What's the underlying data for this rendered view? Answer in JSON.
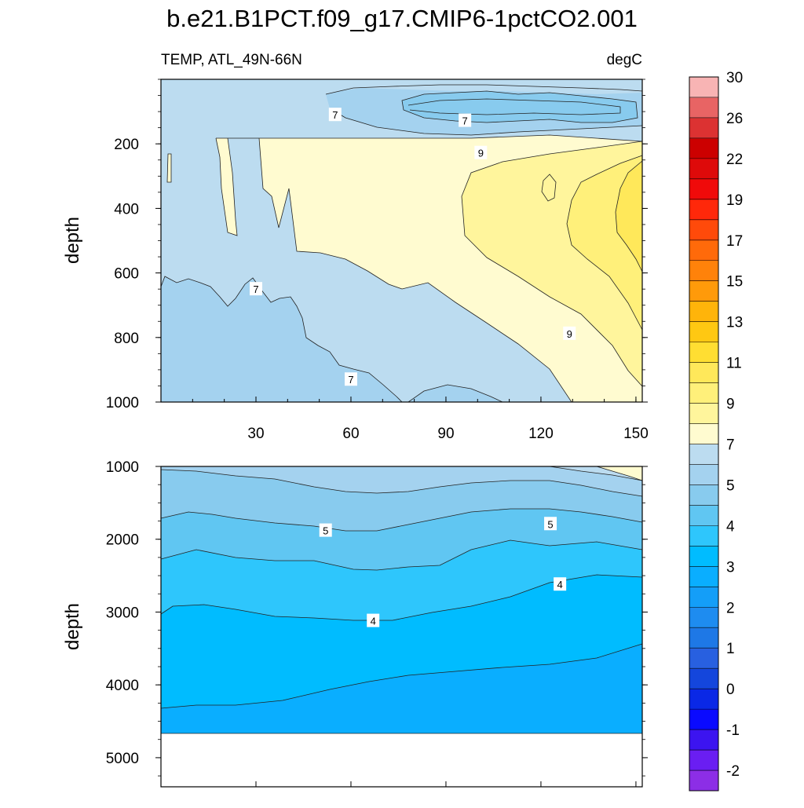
{
  "title": "b.e21.B1PCT.f09_g17.CMIP6-1pctCO2.001",
  "upper_panel": {
    "left_string": "TEMP, ATL_49N-66N",
    "right_string": "degC"
  },
  "colorbar": {
    "colors": [
      "#8c2ee6",
      "#6a1ef2",
      "#3c14f0",
      "#0a0aff",
      "#0a28e6",
      "#1446dc",
      "#2860e0",
      "#1e78e6",
      "#1e8cf0",
      "#149ef8",
      "#0aaeff",
      "#00bcff",
      "#2ec6fc",
      "#60c6f2",
      "#88cbee",
      "#a4d2ef",
      "#bcdcf0",
      "#fffbd0",
      "#fff59c",
      "#fff07a",
      "#ffe85a",
      "#ffde32",
      "#ffc812",
      "#ffb40a",
      "#ff9a0a",
      "#ff820a",
      "#ff6a0a",
      "#ff4a0a",
      "#ff280a",
      "#f00a0a",
      "#de0a0a",
      "#cc0000",
      "#dc3232",
      "#e86464",
      "#f8b4b4"
    ],
    "labels": [
      "-2",
      "-1",
      "0",
      "1",
      "2",
      "3",
      "4",
      "5",
      "7",
      "9",
      "11",
      "13",
      "15",
      "17",
      "19",
      "22",
      "26",
      "30"
    ]
  },
  "chart_data": [
    {
      "type": "contour",
      "panel": "upper",
      "title": "TEMP, ATL_49N-66N",
      "units": "degC",
      "xlabel": "",
      "ylabel": "depth",
      "xlim": [
        0,
        152
      ],
      "ylim": [
        1000,
        0
      ],
      "x_ticks": [
        "30",
        "60",
        "90",
        "120",
        "150"
      ],
      "y_ticks": [
        "200",
        "400",
        "600",
        "800",
        "1000"
      ],
      "contour_labels": [
        {
          "text": "7",
          "x": 55,
          "y": 110
        },
        {
          "text": "7",
          "x": 96,
          "y": 128
        },
        {
          "text": "9",
          "x": 101,
          "y": 228
        },
        {
          "text": "7",
          "x": 30,
          "y": 650
        },
        {
          "text": "9",
          "x": 129,
          "y": 788
        },
        {
          "text": "7",
          "x": 60,
          "y": 930
        }
      ]
    },
    {
      "type": "contour",
      "panel": "lower",
      "xlabel": "",
      "ylabel": "depth",
      "xlim": [
        0,
        152
      ],
      "ylim": [
        5400,
        1000
      ],
      "y_ticks": [
        "1000",
        "2000",
        "3000",
        "4000",
        "5000"
      ],
      "contour_labels": [
        {
          "text": "5",
          "x": 52,
          "y": 1880
        },
        {
          "text": "5",
          "x": 123,
          "y": 1790
        },
        {
          "text": "4",
          "x": 126,
          "y": 2620
        },
        {
          "text": "4",
          "x": 67,
          "y": 3120
        }
      ]
    }
  ]
}
